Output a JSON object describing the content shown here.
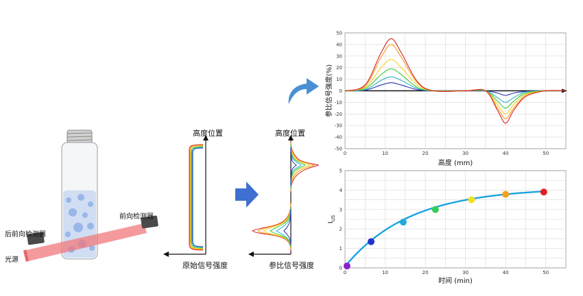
{
  "instrument": {
    "rear_detector_label": "后前向检测器",
    "front_detector_label": "前向检测器",
    "light_source_label": "光源"
  },
  "raw_profile": {
    "y_axis_label": "高度位置",
    "x_axis_label": "原始信号强度"
  },
  "delta_profile": {
    "y_axis_label": "高度位置",
    "x_axis_label": "参比信号强度"
  },
  "colors": {
    "arrow_blue": "#3f6fd0",
    "beam_red": "#f0787c",
    "curve_blue": "#2233aa",
    "fit_cyan": "#1aa3e0"
  },
  "series_colors": [
    "#2233aa",
    "#2ab0c8",
    "#3cc83c",
    "#b8e020",
    "#f5d020",
    "#f59a20",
    "#d62020"
  ],
  "charts": {
    "top": {
      "ylabel": "参比信号强度(%)",
      "xlabel": "高度 (mm)",
      "xticks": [
        "0",
        "10",
        "20",
        "30",
        "40",
        "50"
      ],
      "yticks": [
        "50",
        "40",
        "30",
        "20",
        "10",
        "0",
        "-10",
        "-20",
        "-30",
        "-40",
        "-50"
      ]
    },
    "bottom": {
      "ylabel": "IUS",
      "ylabel_main": "I",
      "ylabel_sub": "US",
      "xlabel": "时间 (min)",
      "xticks": [
        "0",
        "10",
        "20",
        "30",
        "40",
        "50"
      ],
      "yticks": [
        "5",
        "4",
        "3",
        "2",
        "1",
        "0"
      ]
    }
  },
  "chart_data": [
    {
      "type": "line",
      "xlabel": "高度 (mm)",
      "ylabel": "参比信号强度(%)",
      "xlim": [
        0,
        55
      ],
      "ylim": [
        -50,
        50
      ],
      "grid": true,
      "series": [
        {
          "color": "#2233aa",
          "x": [
            0,
            5,
            9,
            11.5,
            14,
            18,
            22,
            30,
            35,
            38,
            40,
            42,
            45,
            50,
            55
          ],
          "y": [
            0,
            0.5,
            5,
            7,
            5,
            1,
            0,
            0,
            0,
            -2,
            -4,
            -2,
            -0.5,
            0,
            0
          ]
        },
        {
          "color": "#2ab0c8",
          "x": [
            0,
            5,
            9,
            11.5,
            14,
            18,
            22,
            30,
            35,
            38,
            40,
            42,
            45,
            50,
            55
          ],
          "y": [
            0,
            1,
            9,
            12,
            9,
            2,
            0,
            0,
            0,
            -6,
            -10,
            -6,
            -1,
            0,
            0
          ]
        },
        {
          "color": "#3cc83c",
          "x": [
            0,
            5,
            9,
            11.5,
            14,
            18,
            22,
            30,
            35,
            38,
            40,
            42,
            45,
            50,
            55
          ],
          "y": [
            0,
            2,
            14,
            19,
            14,
            3,
            0,
            0,
            0,
            -9,
            -15,
            -9,
            -2,
            0,
            0
          ]
        },
        {
          "color": "#f5d020",
          "x": [
            0,
            5,
            9,
            11.5,
            14,
            18,
            22,
            30,
            35,
            38,
            40,
            42,
            45,
            50,
            55
          ],
          "y": [
            0,
            3,
            20,
            27,
            20,
            5,
            0,
            0,
            0,
            -12,
            -20,
            -12,
            -3,
            0,
            0
          ]
        },
        {
          "color": "#f59a20",
          "x": [
            0,
            5,
            9,
            11.5,
            14,
            18,
            22,
            30,
            35,
            38,
            40,
            42,
            45,
            50,
            55
          ],
          "y": [
            0,
            4,
            29,
            40,
            29,
            7,
            0,
            0,
            0,
            -15,
            -24,
            -15,
            -4,
            0,
            0
          ]
        },
        {
          "color": "#d62020",
          "x": [
            0,
            5,
            9,
            11.5,
            14,
            18,
            22,
            30,
            35,
            38,
            40,
            42,
            45,
            50,
            55
          ],
          "y": [
            0,
            5,
            33,
            45,
            33,
            8,
            0,
            0,
            0,
            -17,
            -28,
            -17,
            -5,
            0,
            0
          ]
        }
      ]
    },
    {
      "type": "scatter",
      "xlabel": "时间 (min)",
      "ylabel": "IUS",
      "xlim": [
        0,
        55
      ],
      "ylim": [
        0,
        5
      ],
      "grid": true,
      "x": [
        0.5,
        6.5,
        14.5,
        22.5,
        31.5,
        40,
        49.5
      ],
      "y": [
        0.1,
        1.35,
        2.35,
        3.0,
        3.5,
        3.78,
        3.9
      ],
      "point_colors": [
        "#8a22c8",
        "#2233cc",
        "#22aadd",
        "#33cc55",
        "#f2e020",
        "#f5a020",
        "#e02020"
      ],
      "fit_color": "#1aa3e0"
    }
  ]
}
